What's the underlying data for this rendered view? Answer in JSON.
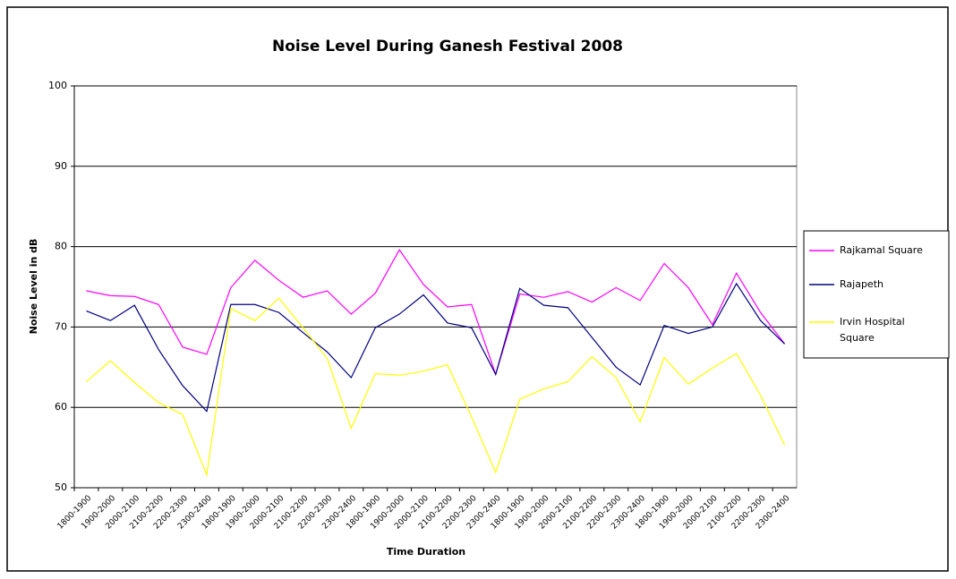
{
  "chart_data": {
    "type": "line",
    "title": "Noise Level During Ganesh Festival 2008",
    "xlabel": "Time Duration",
    "ylabel": "Noise Level in dB",
    "categories": [
      "1800-1900",
      "1900-2000",
      "2000-2100",
      "2100-2200",
      "2200-2300",
      "2300-2400",
      "1800-1900",
      "1900-2000",
      "2000-2100",
      "2100-2200",
      "2200-2300",
      "2300-2400",
      "1800-1900",
      "1900-2000",
      "2000-2100",
      "2100-2200",
      "2200-2300",
      "2300-2400",
      "1800-1900",
      "1900-2000",
      "2000-2100",
      "2100-2200",
      "2200-2300",
      "2300-2400",
      "1800-1900",
      "1900-2000",
      "2000-2100",
      "2100-2200",
      "2200-2300",
      "2300-2400"
    ],
    "series": [
      {
        "name": "Rajkamal Square",
        "color": "#ff00ff",
        "values": [
          74.5,
          73.9,
          73.8,
          72.8,
          67.5,
          66.6,
          74.9,
          78.3,
          75.8,
          73.7,
          74.5,
          71.6,
          74.2,
          79.6,
          75.3,
          72.5,
          72.8,
          64.1,
          74.1,
          73.7,
          74.4,
          73.1,
          74.9,
          73.3,
          77.9,
          74.9,
          70.3,
          76.7,
          71.8,
          67.9
        ]
      },
      {
        "name": "Rajapeth",
        "color": "#000080",
        "values": [
          72,
          70.8,
          72.7,
          67.2,
          62.7,
          59.5,
          72.8,
          72.8,
          71.8,
          69.3,
          66.9,
          63.7,
          69.9,
          71.6,
          74,
          70.5,
          69.9,
          64.1,
          74.8,
          72.7,
          72.4,
          68.7,
          65,
          62.8,
          70.2,
          69.2,
          70,
          75.4,
          70.8,
          67.9
        ]
      },
      {
        "name": "Irvin Hospital Square",
        "color": "#ffff00",
        "values": [
          63.2,
          65.8,
          63.1,
          60.6,
          59.1,
          51.6,
          72.3,
          70.8,
          73.6,
          69.9,
          66.1,
          57.4,
          64.2,
          64,
          64.5,
          65.3,
          58.8,
          51.9,
          61,
          62.3,
          63.2,
          66.3,
          63.7,
          58.2,
          66.2,
          62.9,
          64.9,
          66.7,
          61.5,
          55.3
        ]
      }
    ],
    "ylim": [
      50,
      100
    ],
    "yticks": [
      50,
      60,
      70,
      80,
      90,
      100
    ],
    "grid": true,
    "legend": "right"
  }
}
